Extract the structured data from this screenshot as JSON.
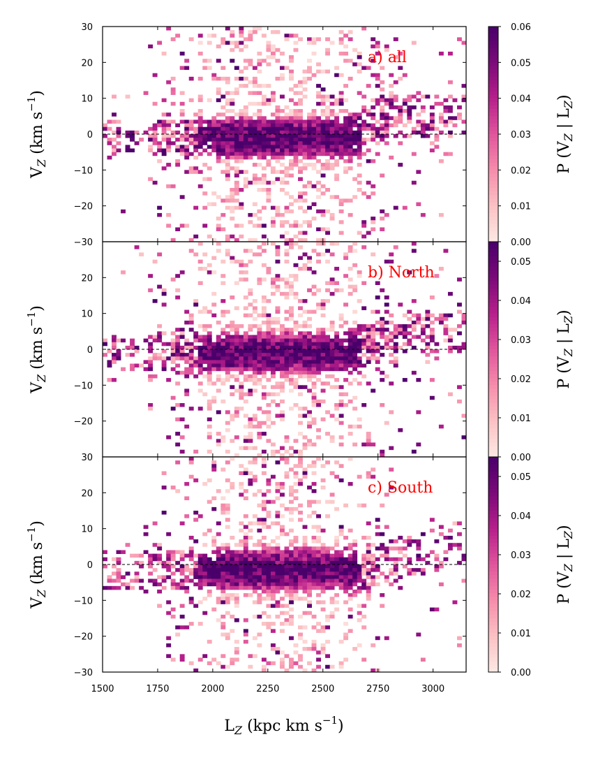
{
  "chart_data": {
    "type": "heatmap",
    "xlabel": "L_Z (kpc km s^-1)",
    "ylabel": "V_Z (km s^-1)",
    "colorbar_label": "P (V_Z | L_Z)",
    "xlim": [
      1500,
      3150
    ],
    "ylim": [
      -30,
      30
    ],
    "x_ticks": [
      1500,
      1750,
      2000,
      2250,
      2500,
      2750,
      3000
    ],
    "x_tick_labels": [
      "1500",
      "1750",
      "2000",
      "2250",
      "2500",
      "2750",
      "3000"
    ],
    "y_ticks": [
      -30,
      -20,
      -10,
      0,
      10,
      20,
      30
    ],
    "y_tick_labels": [
      "−30",
      "−20",
      "−10",
      "0",
      "10",
      "20",
      "30"
    ],
    "reference_line_y": 0,
    "colormap": [
      "#fde9e4",
      "#fbc1c3",
      "#f68cab",
      "#e0559c",
      "#b61f8b",
      "#7a0a79",
      "#49006a"
    ],
    "panels": [
      {
        "label": "a) all",
        "y_tick_labels": [
          "30",
          "20",
          "10",
          "0",
          "−10",
          "−20",
          "−30"
        ],
        "colorbar_range": [
          0.0,
          0.06
        ],
        "colorbar_ticks": [
          "0.06",
          "0.05",
          "0.04",
          "0.03",
          "0.02",
          "0.01",
          "0.00"
        ],
        "ridge_description": "peak near Vz≈0 around Lz≈2250–2500, bending to Vz≈+5 beyond Lz≈2750"
      },
      {
        "label": "b) North",
        "y_tick_labels": [
          "20",
          "10",
          "0",
          "−10",
          "−20"
        ],
        "colorbar_range": [
          0.0,
          0.055
        ],
        "colorbar_ticks": [
          "0.05",
          "0.04",
          "0.03",
          "0.02",
          "0.01",
          "0.00"
        ],
        "ridge_description": "broad band around Vz≈0, shifted to +5 beyond Lz≈2750"
      },
      {
        "label": "c) South",
        "y_tick_labels": [
          "30",
          "20",
          "10",
          "0",
          "−10",
          "−20",
          "−30"
        ],
        "colorbar_range": [
          0.0,
          0.055
        ],
        "colorbar_ticks": [
          "0.05",
          "0.04",
          "0.03",
          "0.02",
          "0.01",
          "0.00"
        ],
        "ridge_description": "peak near Vz≈-2 at Lz≈2100–2600, sparse at high Lz"
      }
    ],
    "x_tick_label_list": [
      "1500",
      "1750",
      "2000",
      "2250",
      "2500",
      "2750",
      "3000"
    ]
  },
  "labels": {
    "xlabel_main": "L",
    "xlabel_sub": "Z",
    "xlabel_rest": " (kpc km s",
    "xlabel_sup": "−1",
    "xlabel_end": ")",
    "ylabel_main": "V",
    "ylabel_sub": "Z",
    "ylabel_rest": " (km s",
    "ylabel_sup": "−1",
    "ylabel_end": ")",
    "cb_main": "P (V",
    "cb_sub": "Z",
    "cb_mid": " | L",
    "cb_sub2": "Z",
    "cb_end": ")"
  }
}
